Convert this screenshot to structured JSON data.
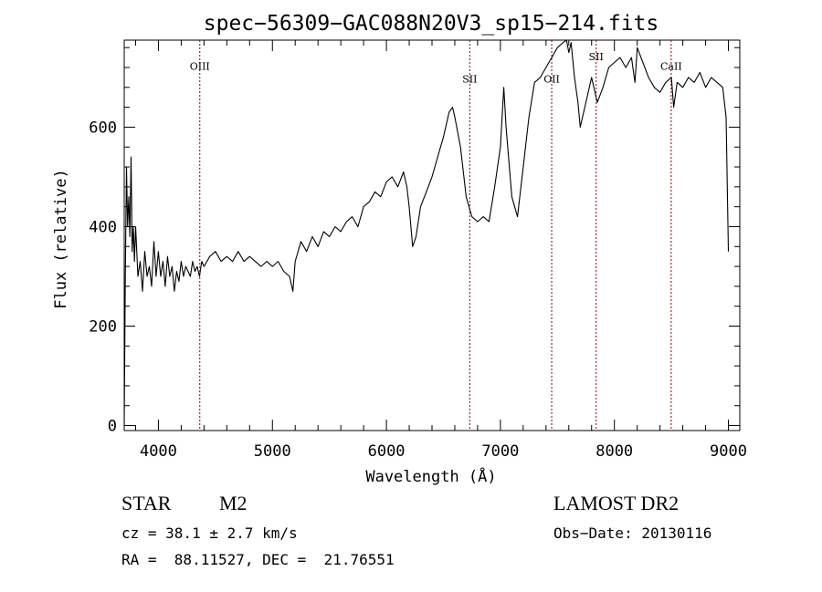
{
  "chart_data": {
    "type": "line",
    "title": "spec−56309−GAC088N20V3_sp15−214.fits",
    "xlabel": "Wavelength (Å)",
    "ylabel": "Flux (relative)",
    "xlim": [
      3700,
      9100
    ],
    "ylim": [
      -10,
      775
    ],
    "x_ticks": [
      4000,
      5000,
      6000,
      7000,
      8000,
      9000
    ],
    "y_ticks": [
      0,
      200,
      400,
      600
    ],
    "grid": false,
    "series_color": "#000000",
    "line_color": "#8b0000",
    "spectral_lines": [
      {
        "label": "OIII",
        "wavelength": 4363,
        "label_flux": 715
      },
      {
        "label": "SII",
        "wavelength": 6731,
        "label_flux": 690
      },
      {
        "label": "OII",
        "wavelength": 7450,
        "label_flux": 690
      },
      {
        "label": "SII",
        "wavelength": 7840,
        "label_flux": 735
      },
      {
        "label": "CaII",
        "wavelength": 8498,
        "label_flux": 715
      }
    ],
    "spectrum": {
      "x": [
        3700,
        3710,
        3720,
        3730,
        3740,
        3750,
        3760,
        3770,
        3780,
        3790,
        3800,
        3820,
        3840,
        3860,
        3880,
        3900,
        3920,
        3940,
        3960,
        3980,
        4000,
        4020,
        4040,
        4060,
        4080,
        4100,
        4120,
        4140,
        4160,
        4180,
        4200,
        4220,
        4240,
        4260,
        4280,
        4300,
        4320,
        4340,
        4360,
        4380,
        4400,
        4450,
        4500,
        4550,
        4600,
        4650,
        4700,
        4750,
        4800,
        4850,
        4900,
        4950,
        5000,
        5050,
        5100,
        5150,
        5180,
        5200,
        5250,
        5300,
        5350,
        5400,
        5450,
        5500,
        5550,
        5600,
        5650,
        5700,
        5750,
        5800,
        5850,
        5900,
        5950,
        6000,
        6050,
        6100,
        6150,
        6180,
        6200,
        6230,
        6260,
        6300,
        6350,
        6400,
        6450,
        6500,
        6550,
        6580,
        6600,
        6650,
        6700,
        6750,
        6800,
        6850,
        6900,
        6950,
        7000,
        7030,
        7050,
        7100,
        7150,
        7200,
        7250,
        7300,
        7350,
        7400,
        7450,
        7500,
        7550,
        7580,
        7600,
        7620,
        7650,
        7680,
        7700,
        7750,
        7800,
        7850,
        7900,
        7950,
        8000,
        8050,
        8100,
        8150,
        8180,
        8200,
        8250,
        8300,
        8350,
        8400,
        8450,
        8500,
        8520,
        8550,
        8600,
        8650,
        8700,
        8750,
        8800,
        8850,
        8900,
        8950,
        8980,
        9000
      ],
      "y": [
        0,
        300,
        520,
        400,
        460,
        380,
        540,
        350,
        400,
        330,
        400,
        300,
        330,
        270,
        350,
        300,
        320,
        280,
        370,
        300,
        350,
        300,
        330,
        280,
        340,
        300,
        320,
        270,
        310,
        290,
        330,
        300,
        320,
        310,
        300,
        330,
        310,
        320,
        300,
        330,
        320,
        340,
        350,
        330,
        340,
        330,
        350,
        330,
        340,
        330,
        320,
        330,
        320,
        330,
        310,
        300,
        270,
        330,
        370,
        350,
        380,
        360,
        390,
        380,
        400,
        390,
        410,
        420,
        400,
        440,
        450,
        470,
        460,
        490,
        500,
        480,
        510,
        480,
        440,
        360,
        380,
        440,
        470,
        500,
        540,
        580,
        630,
        640,
        620,
        560,
        460,
        420,
        410,
        420,
        410,
        480,
        560,
        680,
        600,
        460,
        420,
        520,
        620,
        690,
        700,
        720,
        740,
        760,
        770,
        780,
        750,
        770,
        700,
        650,
        600,
        650,
        700,
        650,
        680,
        720,
        730,
        740,
        720,
        740,
        690,
        760,
        730,
        700,
        680,
        670,
        690,
        700,
        640,
        690,
        680,
        700,
        690,
        710,
        680,
        700,
        690,
        680,
        620,
        350
      ]
    }
  },
  "info": {
    "object_type": "STAR",
    "subclass": "M2",
    "survey": "LAMOST DR2",
    "cz": "cz = 38.1 ± 2.7 km/s",
    "obs_date": "Obs−Date: 20130116",
    "coords": "RA =  88.11527, DEC =  21.76551"
  }
}
